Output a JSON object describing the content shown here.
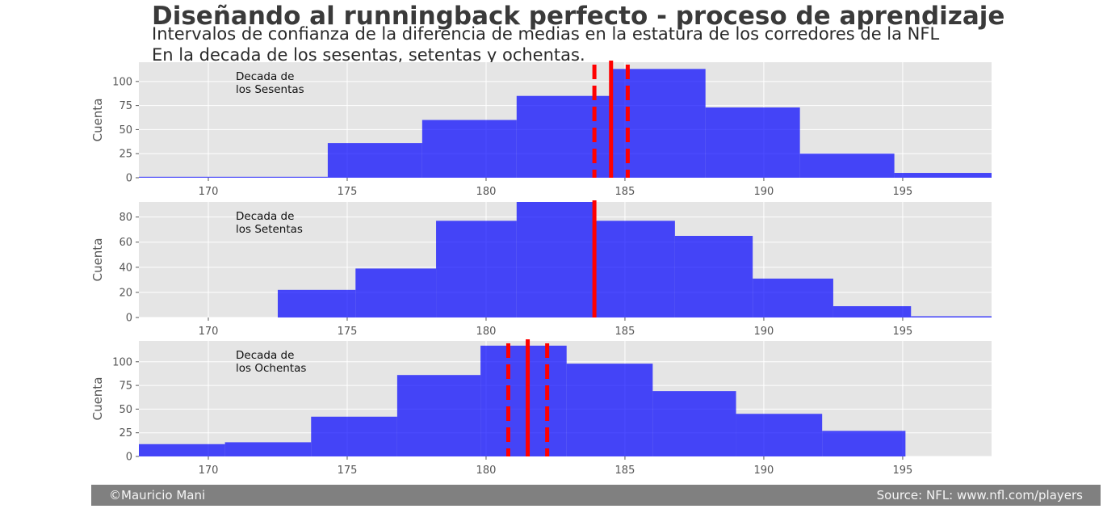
{
  "header": {
    "title": "Diseñando al runningback perfecto - proceso de aprendizaje",
    "subtitle_line1": "Intervalos de confianza de la diferencia de medias en la estatura de los corredores de la NFL",
    "subtitle_line2": "En la decada de los sesentas, setentas y ochentas."
  },
  "footer": {
    "left": "©Mauricio Mani",
    "right": "Source: NFL: www.nfl.com/players"
  },
  "colors": {
    "bar": "#0000ff",
    "mean_line": "#ff0000",
    "panel_bg": "#e5e5e5",
    "grid": "#ffffff"
  },
  "chart_data": [
    {
      "type": "bar",
      "ylabel": "Cuenta",
      "annotation_line1": "Decada de",
      "annotation_line2": "los Sesentas",
      "xlim": [
        167.5,
        198.2
      ],
      "ylim": [
        0,
        120
      ],
      "xticks": [
        170,
        175,
        180,
        185,
        190,
        195
      ],
      "yticks": [
        0,
        25,
        50,
        75,
        100
      ],
      "bins": [
        {
          "x0": 167.5,
          "x1": 174.3,
          "count": 1
        },
        {
          "x0": 174.3,
          "x1": 177.7,
          "count": 36
        },
        {
          "x0": 177.7,
          "x1": 181.1,
          "count": 60
        },
        {
          "x0": 181.1,
          "x1": 184.5,
          "count": 85
        },
        {
          "x0": 184.5,
          "x1": 187.9,
          "count": 113
        },
        {
          "x0": 187.9,
          "x1": 191.3,
          "count": 73
        },
        {
          "x0": 191.3,
          "x1": 194.7,
          "count": 25
        },
        {
          "x0": 194.7,
          "x1": 198.2,
          "count": 5
        }
      ],
      "mean": 184.5,
      "ci": [
        183.9,
        185.1
      ]
    },
    {
      "type": "bar",
      "ylabel": "Cuenta",
      "annotation_line1": "Decada de",
      "annotation_line2": "los Setentas",
      "xlim": [
        167.5,
        198.2
      ],
      "ylim": [
        0,
        92
      ],
      "xticks": [
        170,
        175,
        180,
        185,
        190,
        195
      ],
      "yticks": [
        0,
        20,
        40,
        60,
        80
      ],
      "bins": [
        {
          "x0": 172.5,
          "x1": 175.3,
          "count": 22
        },
        {
          "x0": 175.3,
          "x1": 178.2,
          "count": 39
        },
        {
          "x0": 178.2,
          "x1": 181.1,
          "count": 77
        },
        {
          "x0": 181.1,
          "x1": 183.9,
          "count": 92
        },
        {
          "x0": 183.9,
          "x1": 186.8,
          "count": 77
        },
        {
          "x0": 186.8,
          "x1": 189.6,
          "count": 65
        },
        {
          "x0": 189.6,
          "x1": 192.5,
          "count": 31
        },
        {
          "x0": 192.5,
          "x1": 195.3,
          "count": 9
        },
        {
          "x0": 195.3,
          "x1": 198.2,
          "count": 1
        }
      ],
      "mean": 183.9,
      "ci": []
    },
    {
      "type": "bar",
      "ylabel": "Cuenta",
      "annotation_line1": "Decada de",
      "annotation_line2": "los Ochentas",
      "xlim": [
        167.5,
        198.2
      ],
      "ylim": [
        0,
        122
      ],
      "xticks": [
        170,
        175,
        180,
        185,
        190,
        195
      ],
      "yticks": [
        0,
        25,
        50,
        75,
        100
      ],
      "bins": [
        {
          "x0": 167.5,
          "x1": 170.6,
          "count": 13
        },
        {
          "x0": 170.6,
          "x1": 173.7,
          "count": 15
        },
        {
          "x0": 173.7,
          "x1": 176.8,
          "count": 42
        },
        {
          "x0": 176.8,
          "x1": 179.8,
          "count": 86
        },
        {
          "x0": 179.8,
          "x1": 182.9,
          "count": 117
        },
        {
          "x0": 182.9,
          "x1": 186.0,
          "count": 98
        },
        {
          "x0": 186.0,
          "x1": 189.0,
          "count": 69
        },
        {
          "x0": 189.0,
          "x1": 192.1,
          "count": 45
        },
        {
          "x0": 192.1,
          "x1": 195.1,
          "count": 27
        }
      ],
      "mean": 181.5,
      "ci": [
        180.8,
        182.2
      ]
    }
  ]
}
